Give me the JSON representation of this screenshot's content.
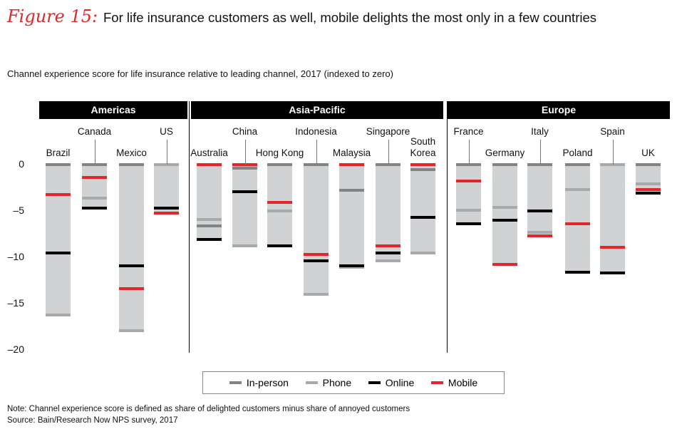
{
  "figure_label": "Figure 15:",
  "title": "For life insurance customers as well, mobile delights the most only in a few countries",
  "note": "Note: Channel experience score is defined as share of delighted customers minus share of annoyed customers",
  "source": "Source: Bain/Research Now NPS survey, 2017",
  "chart_data": {
    "type": "range-bar",
    "title": "Channel experience score for life insurance relative to leading channel, 2017 (indexed to zero)",
    "ylim": [
      -20,
      0
    ],
    "yticks": [
      0,
      -5,
      -10,
      -15,
      -20
    ],
    "ytick_labels": [
      "0",
      "–5",
      "–10",
      "–15",
      "–20"
    ],
    "legend_position": "bottom",
    "series": [
      {
        "name": "In-person",
        "color": "#838383"
      },
      {
        "name": "Phone",
        "color": "#a9a9aa"
      },
      {
        "name": "Online",
        "color": "#000000"
      },
      {
        "name": "Mobile",
        "color": "#e3262b"
      }
    ],
    "groups": [
      {
        "name": "Americas",
        "countries": [
          {
            "name": "Brazil",
            "in_person": 0,
            "phone": -16.2,
            "online": -9.5,
            "mobile": -3.2
          },
          {
            "name": "Canada",
            "in_person": 0,
            "phone": -3.6,
            "online": -4.7,
            "mobile": -1.4
          },
          {
            "name": "Mexico",
            "in_person": 0,
            "phone": -17.9,
            "online": -10.9,
            "mobile": -13.4
          },
          {
            "name": "US",
            "in_person": 0,
            "phone": 0,
            "online": -4.7,
            "mobile": -5.2
          }
        ]
      },
      {
        "name": "Asia-Pacific",
        "countries": [
          {
            "name": "Australia",
            "in_person": -6.6,
            "phone": -5.9,
            "online": -8.1,
            "mobile": 0
          },
          {
            "name": "China",
            "in_person": -0.4,
            "phone": -8.8,
            "online": -2.9,
            "mobile": 0
          },
          {
            "name": "Hong Kong",
            "in_person": 0,
            "phone": -5.0,
            "online": -8.8,
            "mobile": -4.1
          },
          {
            "name": "Indonesia",
            "in_person": 0,
            "phone": -14.0,
            "online": -10.4,
            "mobile": -9.7
          },
          {
            "name": "Malaysia",
            "in_person": -2.8,
            "phone": -11.1,
            "online": -10.9,
            "mobile": 0
          },
          {
            "name": "Singapore",
            "in_person": 0,
            "phone": -10.4,
            "online": -9.5,
            "mobile": -8.8
          },
          {
            "name": "South Korea",
            "in_person": -0.5,
            "phone": -9.5,
            "online": -5.7,
            "mobile": 0
          }
        ]
      },
      {
        "name": "Europe",
        "countries": [
          {
            "name": "France",
            "in_person": 0,
            "phone": -4.9,
            "online": -6.4,
            "mobile": -1.8
          },
          {
            "name": "Germany",
            "in_person": 0,
            "phone": -4.6,
            "online": -6.0,
            "mobile": -10.8
          },
          {
            "name": "Italy",
            "in_person": 0,
            "phone": -7.3,
            "online": -5.0,
            "mobile": -7.7
          },
          {
            "name": "Poland",
            "in_person": 0,
            "phone": -2.7,
            "online": -11.6,
            "mobile": -6.4
          },
          {
            "name": "Spain",
            "in_person": 0,
            "phone": 0,
            "online": -11.7,
            "mobile": -8.9
          },
          {
            "name": "UK",
            "in_person": 0,
            "phone": -2.1,
            "online": -3.1,
            "mobile": -2.7
          }
        ]
      }
    ]
  }
}
